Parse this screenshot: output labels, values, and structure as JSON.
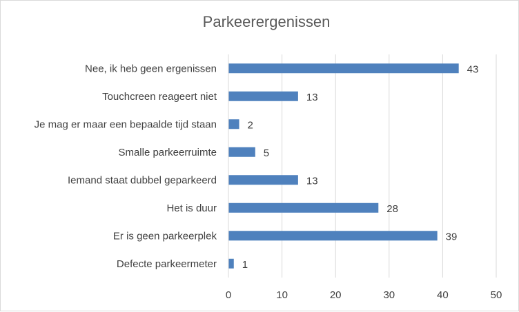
{
  "chart_data": {
    "type": "bar",
    "orientation": "horizontal",
    "title": "Parkeerergenissen",
    "xlabel": "",
    "ylabel": "",
    "categories": [
      "Nee, ik heb geen ergenissen",
      "Touchcreen reageert niet",
      "Je mag er maar een bepaalde tijd staan",
      "Smalle parkeerruimte",
      "Iemand staat dubbel geparkeerd",
      "Het is duur",
      "Er is geen parkeerplek",
      "Defecte parkeermeter"
    ],
    "values": [
      43,
      13,
      2,
      5,
      13,
      28,
      39,
      1
    ],
    "xlim": [
      0,
      50
    ],
    "ticks": [
      0,
      10,
      20,
      30,
      40,
      50
    ],
    "grid": "vertical",
    "legend": "none",
    "data_labels": true,
    "colors": {
      "bar": "#4f81bd",
      "grid": "#d9d9d9",
      "text": "#404040",
      "title": "#595959"
    }
  }
}
